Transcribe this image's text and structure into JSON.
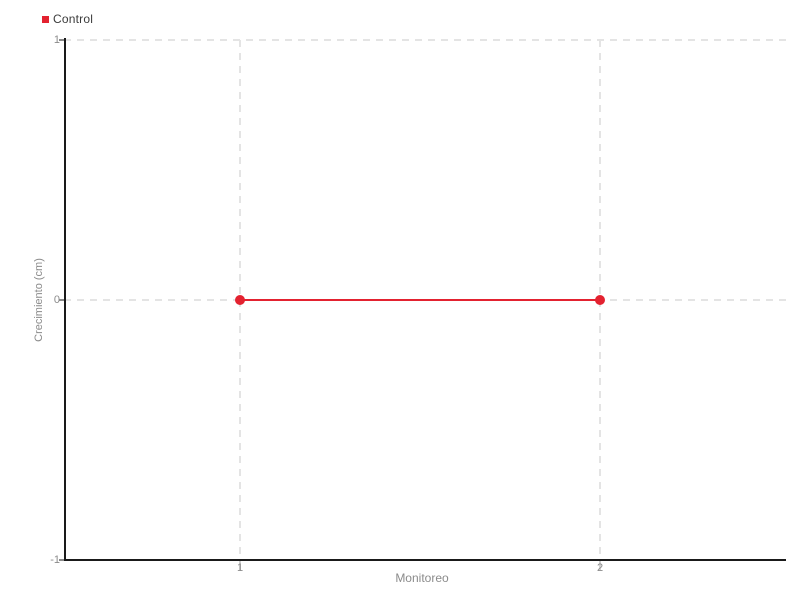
{
  "chart_data": {
    "type": "line",
    "x": [
      1,
      2
    ],
    "series": [
      {
        "name": "Control",
        "values": [
          0,
          0
        ],
        "color": "#e32230",
        "marker": "circle"
      }
    ],
    "xlabel": "Monitoreo",
    "ylabel": "Crecimiento (cm)",
    "xticks": [
      "1",
      "2"
    ],
    "yticks": [
      "1",
      "0",
      "-1"
    ],
    "ylim": [
      -1,
      1
    ],
    "xlim_estimate": [
      0.5,
      2.5
    ],
    "grid": "dashed",
    "grid_color": "#e4e4e4",
    "axis_color": "#1a1a1a",
    "tick_label_color": "#8b8b8b",
    "legend_position": "top-left",
    "background": "#ffffff"
  },
  "legend": {
    "items": [
      {
        "label": "Control",
        "color": "#e32230"
      }
    ]
  }
}
